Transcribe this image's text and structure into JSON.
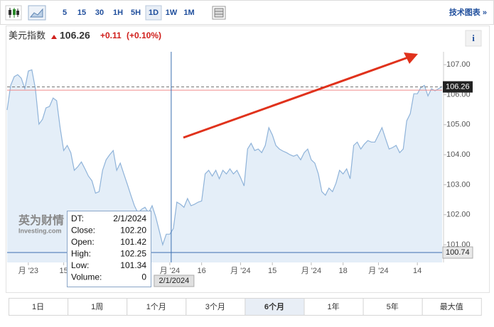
{
  "toolbar": {
    "intervals": [
      "5",
      "15",
      "30",
      "1H",
      "5H",
      "1D",
      "1W",
      "1M"
    ],
    "selected": "1D",
    "link": "技术图表 »"
  },
  "header": {
    "name": "美元指数",
    "price": "106.26",
    "change": "+0.11",
    "change_pct": "(+0.10%)",
    "info": "i"
  },
  "watermark": {
    "brand": "英为财情",
    "site": "Investing.com"
  },
  "tooltip": {
    "rows": [
      [
        "DT:",
        "2/1/2024"
      ],
      [
        "Close:",
        "102.20"
      ],
      [
        "Open:",
        "101.42"
      ],
      [
        "High:",
        "102.25"
      ],
      [
        "Low:",
        "101.34"
      ],
      [
        "Volume:",
        "0"
      ]
    ]
  },
  "ranges": {
    "items": [
      "1日",
      "1周",
      "1个月",
      "3个月",
      "6个月",
      "1年",
      "5年",
      "最大值"
    ],
    "selected": "6个月"
  },
  "chart_data": {
    "type": "area",
    "series": [
      {
        "name": "美元指数",
        "color": "#8fb3d9",
        "values": [
          105.49,
          106.31,
          106.6,
          106.67,
          106.55,
          106.2,
          106.79,
          106.83,
          106.2,
          105.02,
          105.18,
          105.56,
          105.61,
          105.89,
          105.8,
          104.9,
          104.14,
          104.31,
          104.07,
          103.48,
          103.6,
          103.76,
          103.53,
          103.29,
          103.13,
          102.72,
          102.77,
          103.48,
          103.83,
          104.0,
          104.14,
          103.48,
          103.72,
          103.36,
          103.01,
          102.65,
          102.3,
          102.06,
          102.18,
          102.25,
          102.06,
          102.3,
          101.94,
          101.47,
          101.0,
          101.35,
          101.35,
          101.54,
          102.42,
          102.35,
          102.25,
          102.54,
          102.3,
          102.35,
          102.42,
          102.46,
          103.36,
          103.48,
          103.29,
          103.48,
          103.2,
          103.48,
          103.36,
          103.53,
          103.36,
          103.48,
          103.24,
          102.96,
          104.19,
          104.38,
          104.14,
          104.19,
          104.07,
          104.31,
          104.9,
          104.66,
          104.31,
          104.19,
          104.12,
          104.07,
          104.0,
          103.95,
          104.0,
          103.83,
          104.07,
          104.19,
          103.83,
          103.72,
          103.36,
          102.77,
          102.65,
          102.89,
          102.77,
          103.05,
          103.48,
          103.36,
          103.53,
          103.2,
          104.31,
          104.42,
          104.19,
          104.35,
          104.47,
          104.42,
          104.42,
          104.66,
          104.9,
          104.54,
          104.19,
          104.24,
          104.31,
          104.07,
          104.19,
          105.13,
          105.37,
          106.03,
          106.03,
          106.24,
          106.31,
          105.96,
          106.2,
          106.13,
          106.2,
          106.27
        ]
      }
    ],
    "xlim": [
      0,
      123
    ],
    "xticks": [
      {
        "value": 6,
        "label": "月 '23"
      },
      {
        "value": 16,
        "label": "15"
      },
      {
        "value": 46,
        "label": "月 '24"
      },
      {
        "value": 55,
        "label": "16"
      },
      {
        "value": 66,
        "label": "月 '24"
      },
      {
        "value": 75,
        "label": "15"
      },
      {
        "value": 86,
        "label": "月 '24"
      },
      {
        "value": 95,
        "label": "18"
      },
      {
        "value": 105,
        "label": "月 '24"
      },
      {
        "value": 116,
        "label": "14"
      }
    ],
    "ylim": [
      100.41,
      107.43
    ],
    "yticks": [
      {
        "value": 101,
        "label": "101.00"
      },
      {
        "value": 102,
        "label": "102.00"
      },
      {
        "value": 103,
        "label": "103.00"
      },
      {
        "value": 104,
        "label": "104.00"
      },
      {
        "value": 105,
        "label": "105.00"
      },
      {
        "value": 106,
        "label": "106.00"
      },
      {
        "value": 107,
        "label": "107.00"
      }
    ],
    "last_price": 106.26,
    "previous_close": 106.15,
    "crosshair": {
      "x": 46.4,
      "x_label": "2/1/2024",
      "y": 100.74
    },
    "grid": false
  }
}
